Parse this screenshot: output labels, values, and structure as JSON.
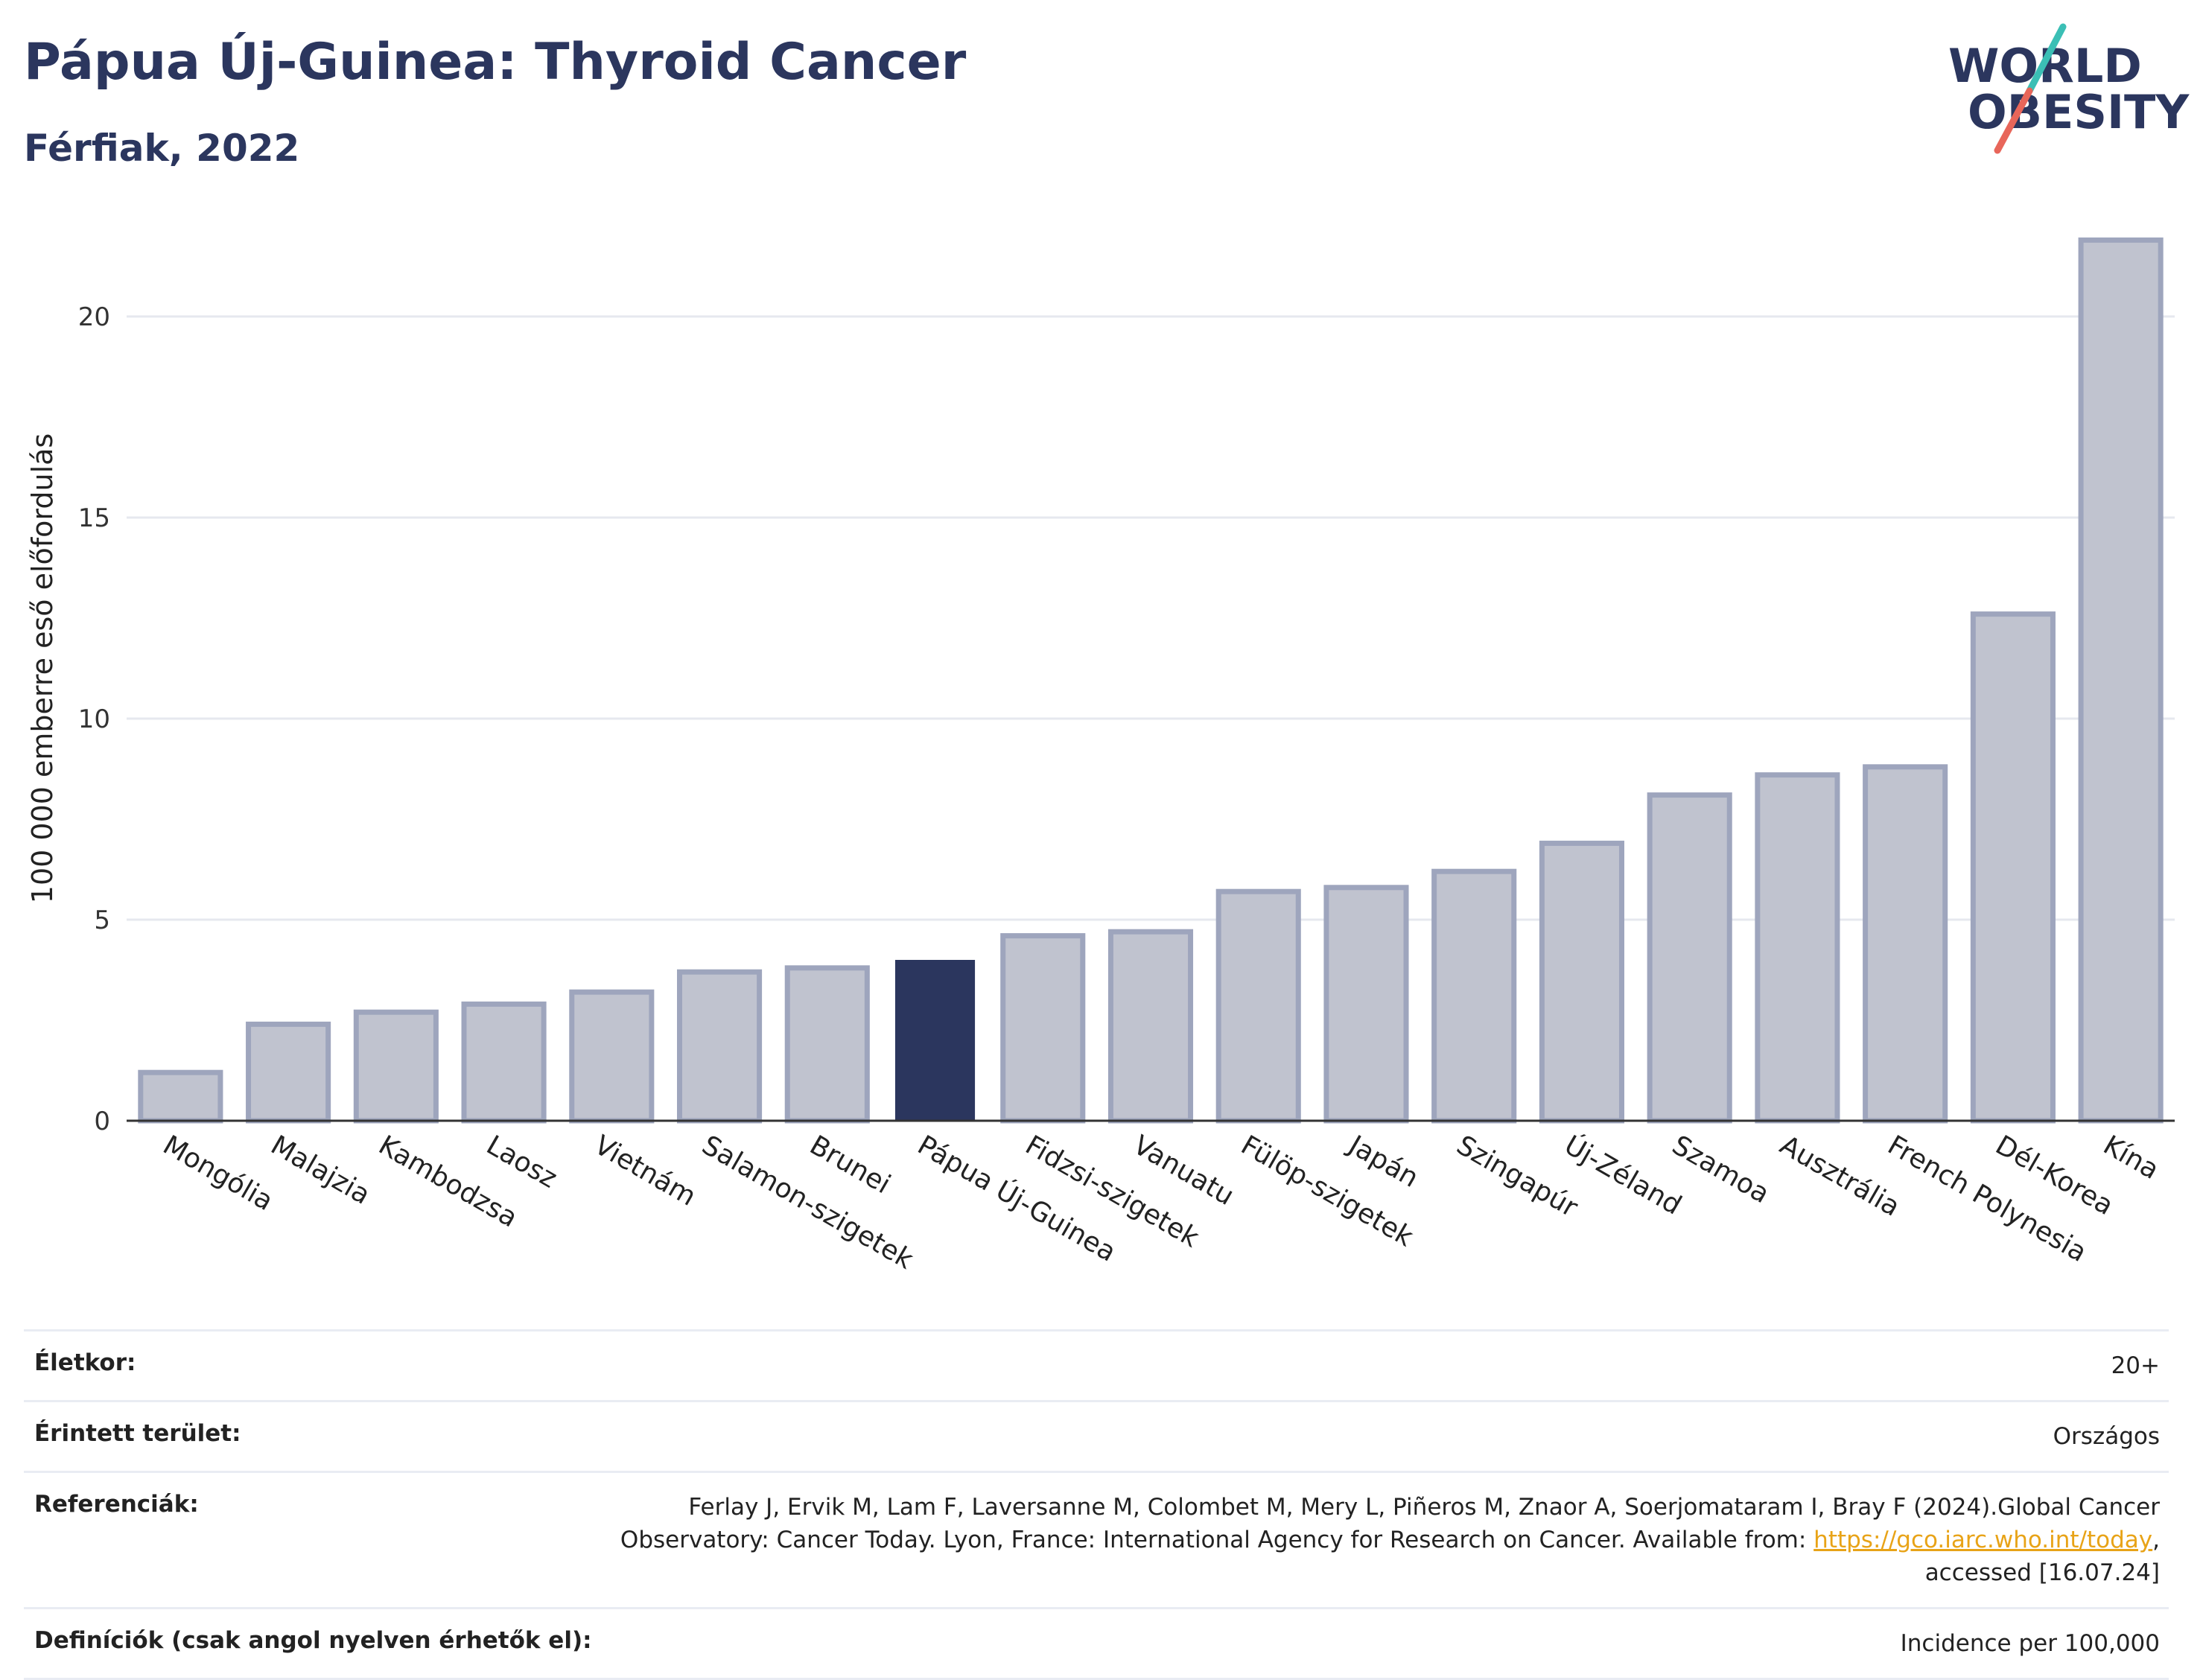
{
  "header": {
    "title": "Pápua Új-Guinea: Thyroid Cancer",
    "subtitle": "Férfiak, 2022"
  },
  "logo": {
    "line1": "WORLD",
    "line2": "OBESITY",
    "colors": {
      "text": "#2b365e",
      "slash_top": "#3bbfb5",
      "slash_bottom": "#e8665a"
    }
  },
  "chart_data": {
    "type": "bar",
    "ylabel": "100 000 emberre eső előfordulás",
    "ylim": [
      0,
      22.5
    ],
    "yticks": [
      0,
      5,
      10,
      15,
      20
    ],
    "grid": true,
    "categories": [
      "Mongólia",
      "Malajzia",
      "Kambodzsa",
      "Laosz",
      "Vietnám",
      "Salamon-szigetek",
      "Brunei",
      "Pápua Új-Guinea",
      "Fidzsi-szigetek",
      "Vanuatu",
      "Fülöp-szigetek",
      "Japán",
      "Szingapúr",
      "Új-Zéland",
      "Szamoa",
      "Ausztrália",
      "French Polynesia",
      "Dél-Korea",
      "Kína"
    ],
    "values": [
      1.2,
      2.4,
      2.7,
      2.9,
      3.2,
      3.7,
      3.8,
      4.0,
      4.6,
      4.7,
      5.7,
      5.8,
      6.2,
      6.9,
      8.1,
      8.6,
      8.8,
      12.6,
      21.9
    ],
    "highlight": "Pápua Új-Guinea",
    "colors": {
      "bar": "#c0c3cf",
      "bar_stroke": "#9ea5bd",
      "highlight": "#2b365e",
      "grid": "#e6e8ef",
      "axis": "#333333"
    }
  },
  "info": {
    "age_label": "Életkor:",
    "age_value": "20+",
    "area_label": "Érintett terület:",
    "area_value": "Országos",
    "ref_label": "Referenciák:",
    "ref_text_1": "Ferlay J, Ervik M, Lam F, Laversanne M, Colombet M, Mery L, Piñeros M, Znaor A, Soerjomataram I, Bray F (2024).Global Cancer Observatory: Cancer Today. Lyon, France: International Agency for Research on Cancer. Available from: ",
    "ref_link": "https://gco.iarc.who.int/today",
    "ref_text_2": ", accessed [16.07.24]",
    "def_label": "Definíciók (csak angol nyelven érhetők el):",
    "def_value": "Incidence per 100,000"
  }
}
